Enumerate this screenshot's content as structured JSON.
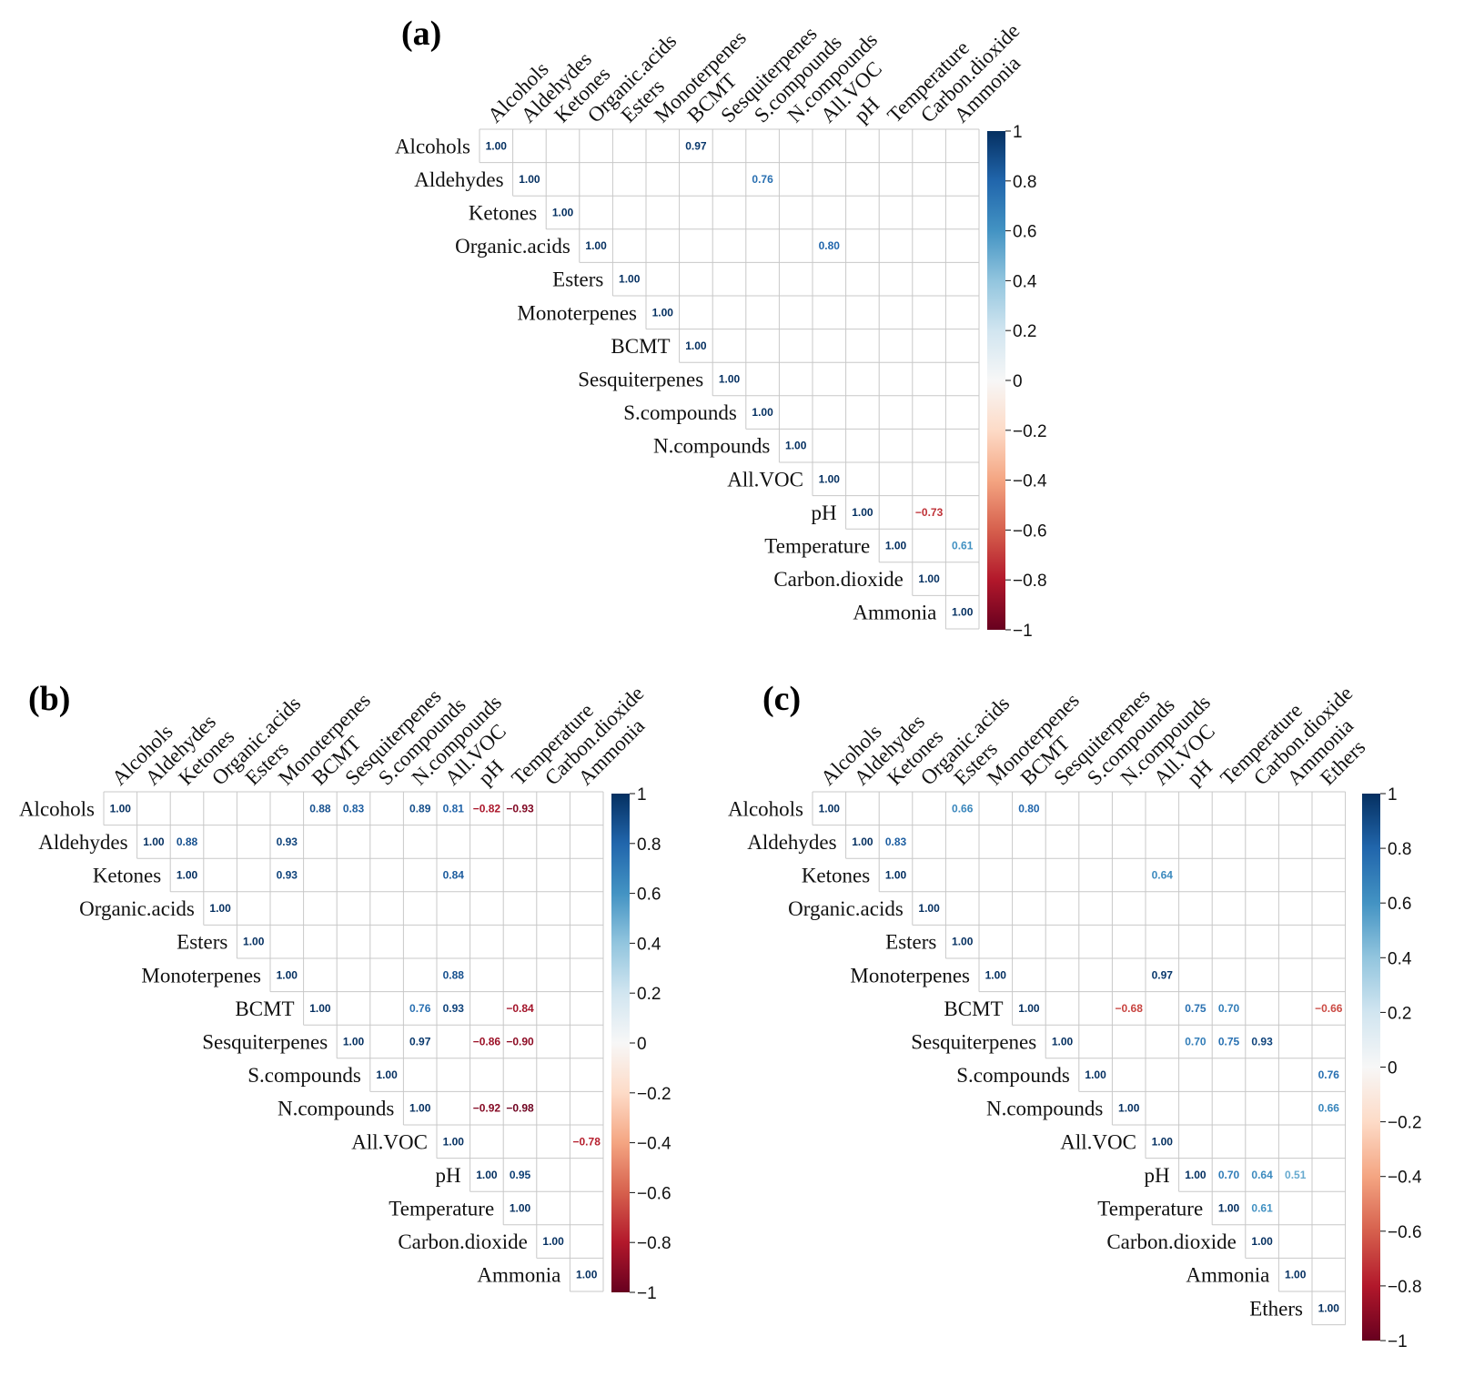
{
  "chart_data": [
    {
      "type": "heatmap",
      "panel_label": "(a)",
      "variables": [
        "Alcohols",
        "Aldehydes",
        "Ketones",
        "Organic.acids",
        "Esters",
        "Monoterpenes",
        "BCMT",
        "Sesquiterpenes",
        "S.compounds",
        "N.compounds",
        "All.VOC",
        "pH",
        "Temperature",
        "Carbon.dioxide",
        "Ammonia"
      ],
      "cells": [
        {
          "row": "Alcohols",
          "col": "Alcohols",
          "value": 1.0
        },
        {
          "row": "Alcohols",
          "col": "BCMT",
          "value": 0.97
        },
        {
          "row": "Aldehydes",
          "col": "Aldehydes",
          "value": 1.0
        },
        {
          "row": "Aldehydes",
          "col": "S.compounds",
          "value": 0.76
        },
        {
          "row": "Ketones",
          "col": "Ketones",
          "value": 1.0
        },
        {
          "row": "Organic.acids",
          "col": "Organic.acids",
          "value": 1.0
        },
        {
          "row": "Organic.acids",
          "col": "All.VOC",
          "value": 0.8
        },
        {
          "row": "Esters",
          "col": "Esters",
          "value": 1.0
        },
        {
          "row": "Monoterpenes",
          "col": "Monoterpenes",
          "value": 1.0
        },
        {
          "row": "BCMT",
          "col": "BCMT",
          "value": 1.0
        },
        {
          "row": "Sesquiterpenes",
          "col": "Sesquiterpenes",
          "value": 1.0
        },
        {
          "row": "S.compounds",
          "col": "S.compounds",
          "value": 1.0
        },
        {
          "row": "N.compounds",
          "col": "N.compounds",
          "value": 1.0
        },
        {
          "row": "All.VOC",
          "col": "All.VOC",
          "value": 1.0
        },
        {
          "row": "pH",
          "col": "pH",
          "value": 1.0
        },
        {
          "row": "pH",
          "col": "Carbon.dioxide",
          "value": -0.73
        },
        {
          "row": "Temperature",
          "col": "Temperature",
          "value": 1.0
        },
        {
          "row": "Temperature",
          "col": "Ammonia",
          "value": 0.61
        },
        {
          "row": "Carbon.dioxide",
          "col": "Carbon.dioxide",
          "value": 1.0
        },
        {
          "row": "Ammonia",
          "col": "Ammonia",
          "value": 1.0
        }
      ],
      "colorbar_ticks": [
        "1",
        "0.8",
        "0.6",
        "0.4",
        "0.2",
        "0",
        "−0.2",
        "−0.4",
        "−0.6",
        "−0.8",
        "−1"
      ],
      "color_range": [
        -1,
        1
      ]
    },
    {
      "type": "heatmap",
      "panel_label": "(b)",
      "variables": [
        "Alcohols",
        "Aldehydes",
        "Ketones",
        "Organic.acids",
        "Esters",
        "Monoterpenes",
        "BCMT",
        "Sesquiterpenes",
        "S.compounds",
        "N.compounds",
        "All.VOC",
        "pH",
        "Temperature",
        "Carbon.dioxide",
        "Ammonia"
      ],
      "cells": [
        {
          "row": "Alcohols",
          "col": "Alcohols",
          "value": 1.0
        },
        {
          "row": "Alcohols",
          "col": "BCMT",
          "value": 0.88
        },
        {
          "row": "Alcohols",
          "col": "Sesquiterpenes",
          "value": 0.83
        },
        {
          "row": "Alcohols",
          "col": "N.compounds",
          "value": 0.89
        },
        {
          "row": "Alcohols",
          "col": "All.VOC",
          "value": 0.81
        },
        {
          "row": "Alcohols",
          "col": "pH",
          "value": -0.82
        },
        {
          "row": "Alcohols",
          "col": "Temperature",
          "value": -0.93
        },
        {
          "row": "Aldehydes",
          "col": "Aldehydes",
          "value": 1.0
        },
        {
          "row": "Aldehydes",
          "col": "Ketones",
          "value": 0.88
        },
        {
          "row": "Aldehydes",
          "col": "Monoterpenes",
          "value": 0.93
        },
        {
          "row": "Ketones",
          "col": "Ketones",
          "value": 1.0
        },
        {
          "row": "Ketones",
          "col": "Monoterpenes",
          "value": 0.93
        },
        {
          "row": "Ketones",
          "col": "All.VOC",
          "value": 0.84
        },
        {
          "row": "Organic.acids",
          "col": "Organic.acids",
          "value": 1.0
        },
        {
          "row": "Esters",
          "col": "Esters",
          "value": 1.0
        },
        {
          "row": "Monoterpenes",
          "col": "Monoterpenes",
          "value": 1.0
        },
        {
          "row": "Monoterpenes",
          "col": "All.VOC",
          "value": 0.88
        },
        {
          "row": "BCMT",
          "col": "BCMT",
          "value": 1.0
        },
        {
          "row": "BCMT",
          "col": "N.compounds",
          "value": 0.76
        },
        {
          "row": "BCMT",
          "col": "All.VOC",
          "value": 0.93
        },
        {
          "row": "BCMT",
          "col": "Temperature",
          "value": -0.84
        },
        {
          "row": "Sesquiterpenes",
          "col": "Sesquiterpenes",
          "value": 1.0
        },
        {
          "row": "Sesquiterpenes",
          "col": "N.compounds",
          "value": 0.97
        },
        {
          "row": "Sesquiterpenes",
          "col": "pH",
          "value": -0.86
        },
        {
          "row": "Sesquiterpenes",
          "col": "Temperature",
          "value": -0.9
        },
        {
          "row": "S.compounds",
          "col": "S.compounds",
          "value": 1.0
        },
        {
          "row": "N.compounds",
          "col": "N.compounds",
          "value": 1.0
        },
        {
          "row": "N.compounds",
          "col": "pH",
          "value": -0.92
        },
        {
          "row": "N.compounds",
          "col": "Temperature",
          "value": -0.98
        },
        {
          "row": "All.VOC",
          "col": "All.VOC",
          "value": 1.0
        },
        {
          "row": "All.VOC",
          "col": "Ammonia",
          "value": -0.78
        },
        {
          "row": "pH",
          "col": "pH",
          "value": 1.0
        },
        {
          "row": "pH",
          "col": "Temperature",
          "value": 0.95
        },
        {
          "row": "Temperature",
          "col": "Temperature",
          "value": 1.0
        },
        {
          "row": "Carbon.dioxide",
          "col": "Carbon.dioxide",
          "value": 1.0
        },
        {
          "row": "Ammonia",
          "col": "Ammonia",
          "value": 1.0
        }
      ],
      "colorbar_ticks": [
        "1",
        "0.8",
        "0.6",
        "0.4",
        "0.2",
        "0",
        "−0.2",
        "−0.4",
        "−0.6",
        "−0.8",
        "−1"
      ],
      "color_range": [
        -1,
        1
      ]
    },
    {
      "type": "heatmap",
      "panel_label": "(c)",
      "variables": [
        "Alcohols",
        "Aldehydes",
        "Ketones",
        "Organic.acids",
        "Esters",
        "Monoterpenes",
        "BCMT",
        "Sesquiterpenes",
        "S.compounds",
        "N.compounds",
        "All.VOC",
        "pH",
        "Temperature",
        "Carbon.dioxide",
        "Ammonia",
        "Ethers"
      ],
      "cells": [
        {
          "row": "Alcohols",
          "col": "Alcohols",
          "value": 1.0
        },
        {
          "row": "Alcohols",
          "col": "Esters",
          "value": 0.66
        },
        {
          "row": "Alcohols",
          "col": "BCMT",
          "value": 0.8
        },
        {
          "row": "Aldehydes",
          "col": "Aldehydes",
          "value": 1.0
        },
        {
          "row": "Aldehydes",
          "col": "Ketones",
          "value": 0.83
        },
        {
          "row": "Ketones",
          "col": "Ketones",
          "value": 1.0
        },
        {
          "row": "Ketones",
          "col": "All.VOC",
          "value": 0.64
        },
        {
          "row": "Organic.acids",
          "col": "Organic.acids",
          "value": 1.0
        },
        {
          "row": "Esters",
          "col": "Esters",
          "value": 1.0
        },
        {
          "row": "Monoterpenes",
          "col": "Monoterpenes",
          "value": 1.0
        },
        {
          "row": "Monoterpenes",
          "col": "All.VOC",
          "value": 0.97
        },
        {
          "row": "BCMT",
          "col": "BCMT",
          "value": 1.0
        },
        {
          "row": "BCMT",
          "col": "N.compounds",
          "value": -0.68
        },
        {
          "row": "BCMT",
          "col": "pH",
          "value": 0.75
        },
        {
          "row": "BCMT",
          "col": "Temperature",
          "value": 0.7
        },
        {
          "row": "BCMT",
          "col": "Ethers",
          "value": -0.66
        },
        {
          "row": "Sesquiterpenes",
          "col": "Sesquiterpenes",
          "value": 1.0
        },
        {
          "row": "Sesquiterpenes",
          "col": "pH",
          "value": 0.7
        },
        {
          "row": "Sesquiterpenes",
          "col": "Temperature",
          "value": 0.75
        },
        {
          "row": "Sesquiterpenes",
          "col": "Carbon.dioxide",
          "value": 0.93
        },
        {
          "row": "S.compounds",
          "col": "S.compounds",
          "value": 1.0
        },
        {
          "row": "S.compounds",
          "col": "Ethers",
          "value": 0.76
        },
        {
          "row": "N.compounds",
          "col": "N.compounds",
          "value": 1.0
        },
        {
          "row": "N.compounds",
          "col": "Ethers",
          "value": 0.66
        },
        {
          "row": "All.VOC",
          "col": "All.VOC",
          "value": 1.0
        },
        {
          "row": "pH",
          "col": "pH",
          "value": 1.0
        },
        {
          "row": "pH",
          "col": "Temperature",
          "value": 0.7
        },
        {
          "row": "pH",
          "col": "Carbon.dioxide",
          "value": 0.64
        },
        {
          "row": "pH",
          "col": "Ammonia",
          "value": 0.51
        },
        {
          "row": "Temperature",
          "col": "Temperature",
          "value": 1.0
        },
        {
          "row": "Temperature",
          "col": "Carbon.dioxide",
          "value": 0.61
        },
        {
          "row": "Carbon.dioxide",
          "col": "Carbon.dioxide",
          "value": 1.0
        },
        {
          "row": "Ammonia",
          "col": "Ammonia",
          "value": 1.0
        },
        {
          "row": "Ethers",
          "col": "Ethers",
          "value": 1.0
        }
      ],
      "colorbar_ticks": [
        "1",
        "0.8",
        "0.6",
        "0.4",
        "0.2",
        "0",
        "−0.2",
        "−0.4",
        "−0.6",
        "−0.8",
        "−1"
      ],
      "color_range": [
        -1,
        1
      ]
    }
  ],
  "colors": {
    "positive_strong": "#053061",
    "positive_mid": "#4393c3",
    "neutral": "#f7f7f7",
    "negative_mid": "#d6604d",
    "negative_strong": "#67001f",
    "grid": "#c8c8c8"
  }
}
